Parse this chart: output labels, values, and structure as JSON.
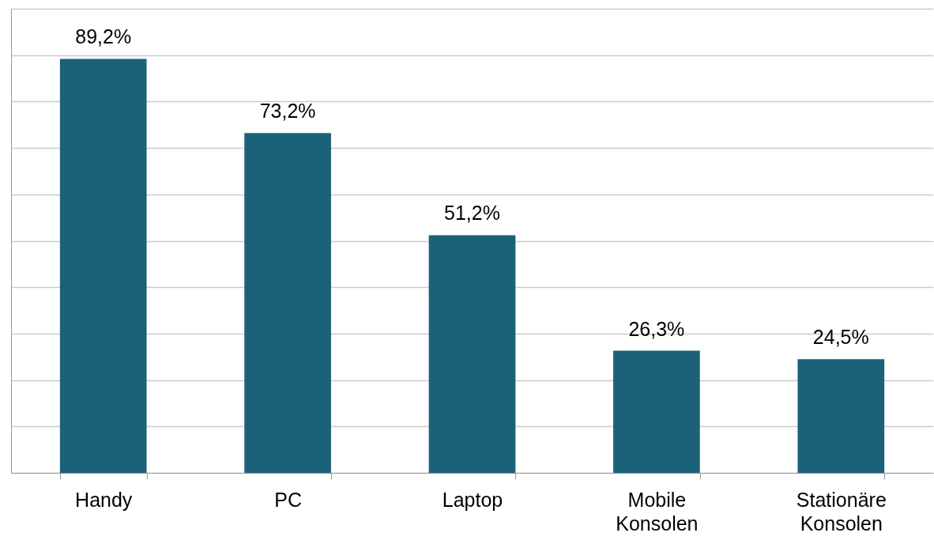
{
  "chart_data": {
    "type": "bar",
    "categories": [
      "Handy",
      "PC",
      "Laptop",
      "Mobile Konsolen",
      "Stationäre Konsolen"
    ],
    "values": [
      89.2,
      73.2,
      51.2,
      26.3,
      24.5
    ],
    "value_labels": [
      "89,2%",
      "73,2%",
      "51,2%",
      "26,3%",
      "24,5%"
    ],
    "color": "#1b6279",
    "ylim": [
      0,
      100
    ],
    "yticks": [
      {
        "value": 0,
        "label": null
      },
      {
        "value": 10,
        "label": null
      },
      {
        "value": 20,
        "label": null
      },
      {
        "value": 30,
        "label": null
      },
      {
        "value": 40,
        "label": null
      },
      {
        "value": 50,
        "label": null
      },
      {
        "value": 60,
        "label": null
      },
      {
        "value": 70,
        "label": null
      },
      {
        "value": 80,
        "label": null
      },
      {
        "value": 90,
        "label": null
      },
      {
        "value": 100,
        "label": null
      }
    ],
    "grid": "y",
    "tick_labels": "x"
  }
}
